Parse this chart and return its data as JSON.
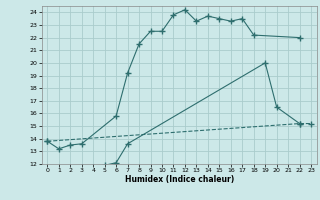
{
  "title": "",
  "xlabel": "Humidex (Indice chaleur)",
  "bg_color": "#cce8e8",
  "line_color": "#2e6e6e",
  "grid_color": "#aacccc",
  "xlim": [
    -0.5,
    23.5
  ],
  "ylim": [
    12,
    24.5
  ],
  "xticks": [
    0,
    1,
    2,
    3,
    4,
    5,
    6,
    7,
    8,
    9,
    10,
    11,
    12,
    13,
    14,
    15,
    16,
    17,
    18,
    19,
    20,
    21,
    22,
    23
  ],
  "yticks": [
    12,
    13,
    14,
    15,
    16,
    17,
    18,
    19,
    20,
    21,
    22,
    23,
    24
  ],
  "series1_x": [
    0,
    1,
    2,
    3,
    6,
    7,
    8,
    9,
    10,
    11,
    12,
    13,
    14,
    15,
    16,
    17,
    18,
    22
  ],
  "series1_y": [
    13.8,
    13.2,
    13.5,
    13.6,
    15.8,
    19.2,
    21.5,
    22.5,
    22.5,
    23.8,
    24.2,
    23.3,
    23.7,
    23.5,
    23.3,
    23.5,
    22.2,
    22.0
  ],
  "series2_x": [
    3,
    4,
    5,
    6,
    7,
    19,
    20,
    22
  ],
  "series2_y": [
    11.8,
    11.8,
    11.9,
    12.1,
    13.6,
    20.0,
    16.5,
    15.2
  ],
  "series3_x": [
    0,
    22,
    23
  ],
  "series3_y": [
    13.8,
    15.2,
    15.2
  ]
}
